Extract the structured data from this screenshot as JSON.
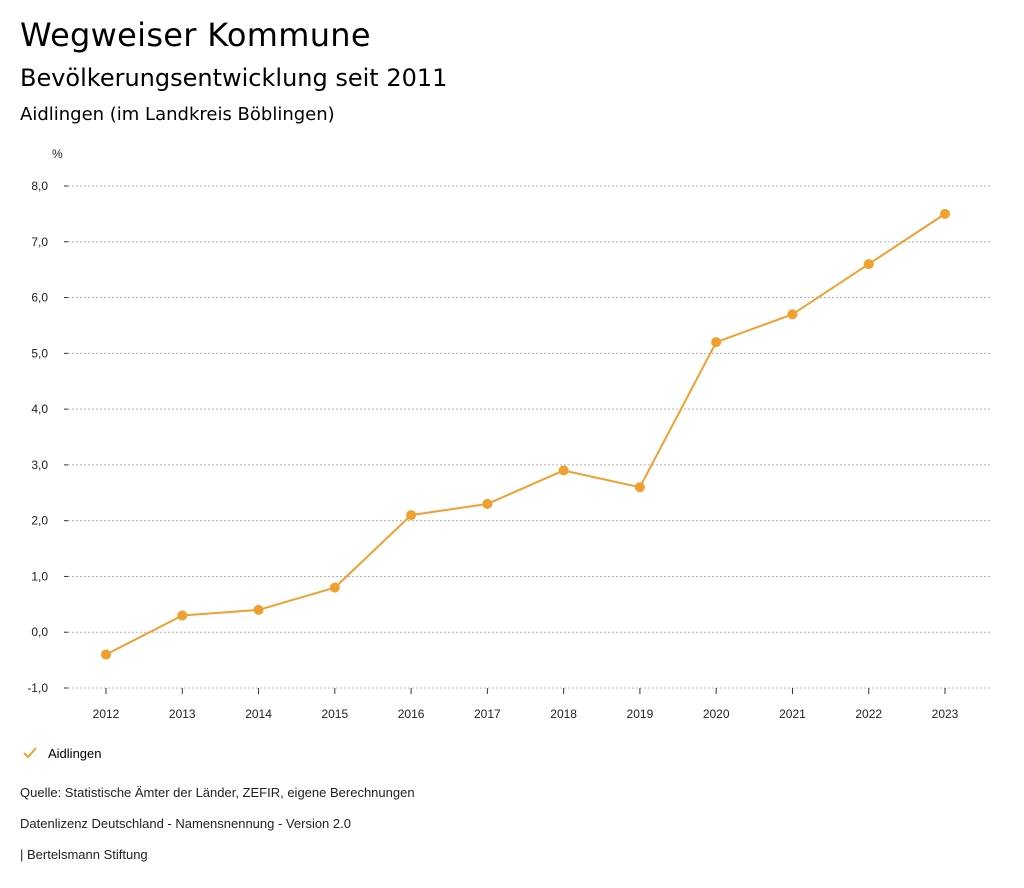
{
  "header": {
    "title": "Wegweiser Kommune",
    "subtitle": "Bevölkerungsentwicklung seit 2011",
    "region": "Aidlingen (im Landkreis Böblingen)"
  },
  "chart_data": {
    "type": "line",
    "title": "Bevölkerungsentwicklung seit 2011",
    "ylabel": "%",
    "xlabel": "",
    "categories": [
      "2012",
      "2013",
      "2014",
      "2015",
      "2016",
      "2017",
      "2018",
      "2019",
      "2020",
      "2021",
      "2022",
      "2023"
    ],
    "series": [
      {
        "name": "Aidlingen",
        "color": "#f0a030",
        "values": [
          -0.4,
          0.3,
          0.4,
          0.8,
          2.1,
          2.3,
          2.9,
          2.6,
          5.2,
          5.7,
          6.6,
          7.5
        ]
      }
    ],
    "ylim": [
      -1,
      8
    ],
    "yticks": [
      -1,
      0,
      1,
      2,
      3,
      4,
      5,
      6,
      7,
      8
    ],
    "ytick_labels": [
      "-1,0",
      "0,0",
      "1,0",
      "2,0",
      "3,0",
      "4,0",
      "5,0",
      "6,0",
      "7,0",
      "8,0"
    ],
    "grid": true,
    "legend": "bottom-left"
  },
  "legend": {
    "label": "Aidlingen",
    "icon": "check-icon"
  },
  "footer": {
    "source": "Quelle: Statistische Ämter der Länder, ZEFIR, eigene Berechnungen",
    "license": "Datenlizenz Deutschland - Namensnennung - Version 2.0",
    "credit": "| Bertelsmann Stiftung"
  }
}
